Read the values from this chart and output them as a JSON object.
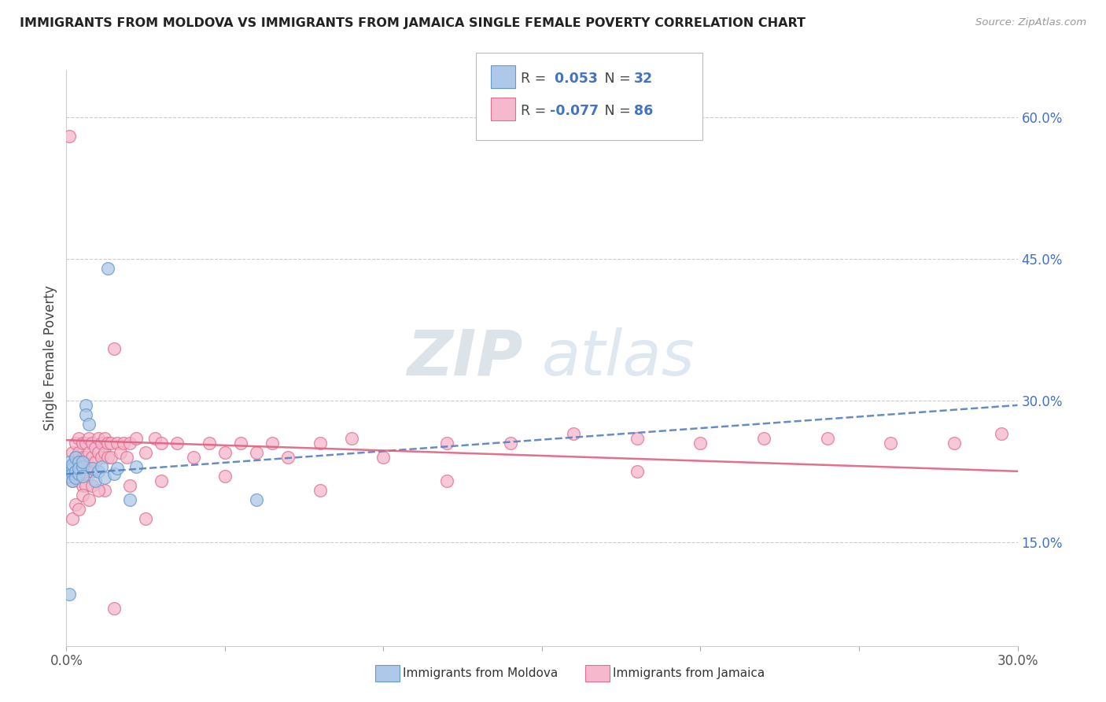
{
  "title": "IMMIGRANTS FROM MOLDOVA VS IMMIGRANTS FROM JAMAICA SINGLE FEMALE POVERTY CORRELATION CHART",
  "source": "Source: ZipAtlas.com",
  "ylabel": "Single Female Poverty",
  "xlim": [
    0.0,
    0.3
  ],
  "ylim": [
    0.04,
    0.65
  ],
  "xticks": [
    0.0,
    0.05,
    0.1,
    0.15,
    0.2,
    0.25,
    0.3
  ],
  "xticklabels": [
    "0.0%",
    "",
    "",
    "",
    "",
    "",
    "30.0%"
  ],
  "yticks_right": [
    0.15,
    0.3,
    0.45,
    0.6
  ],
  "ytick_labels_right": [
    "15.0%",
    "30.0%",
    "45.0%",
    "60.0%"
  ],
  "moldova_color": "#adc8e8",
  "moldova_edge": "#6699cc",
  "jamaica_color": "#f5b8cc",
  "jamaica_edge": "#e07090",
  "moldova_R": 0.053,
  "moldova_N": 32,
  "jamaica_R": -0.077,
  "jamaica_N": 86,
  "watermark": "ZIPatlas",
  "moldova_scatter_x": [
    0.001,
    0.001,
    0.001,
    0.001,
    0.002,
    0.002,
    0.002,
    0.002,
    0.003,
    0.003,
    0.003,
    0.004,
    0.004,
    0.004,
    0.005,
    0.005,
    0.005,
    0.006,
    0.006,
    0.007,
    0.008,
    0.009,
    0.01,
    0.011,
    0.012,
    0.013,
    0.015,
    0.016,
    0.02,
    0.022,
    0.06,
    0.001
  ],
  "moldova_scatter_y": [
    0.225,
    0.23,
    0.235,
    0.22,
    0.228,
    0.222,
    0.232,
    0.215,
    0.24,
    0.225,
    0.218,
    0.235,
    0.222,
    0.228,
    0.23,
    0.235,
    0.22,
    0.295,
    0.285,
    0.275,
    0.228,
    0.215,
    0.225,
    0.23,
    0.218,
    0.44,
    0.222,
    0.228,
    0.195,
    0.23,
    0.195,
    0.095
  ],
  "jamaica_scatter_x": [
    0.001,
    0.001,
    0.002,
    0.002,
    0.002,
    0.003,
    0.003,
    0.003,
    0.003,
    0.004,
    0.004,
    0.004,
    0.004,
    0.005,
    0.005,
    0.005,
    0.005,
    0.006,
    0.006,
    0.006,
    0.006,
    0.007,
    0.007,
    0.007,
    0.008,
    0.008,
    0.008,
    0.009,
    0.009,
    0.01,
    0.01,
    0.011,
    0.011,
    0.012,
    0.012,
    0.013,
    0.013,
    0.014,
    0.014,
    0.015,
    0.016,
    0.017,
    0.018,
    0.019,
    0.02,
    0.022,
    0.025,
    0.028,
    0.03,
    0.035,
    0.04,
    0.045,
    0.05,
    0.055,
    0.06,
    0.065,
    0.07,
    0.08,
    0.09,
    0.1,
    0.12,
    0.14,
    0.16,
    0.18,
    0.2,
    0.22,
    0.24,
    0.26,
    0.28,
    0.295,
    0.003,
    0.005,
    0.008,
    0.012,
    0.02,
    0.03,
    0.05,
    0.08,
    0.12,
    0.18,
    0.002,
    0.004,
    0.007,
    0.01,
    0.015,
    0.025
  ],
  "jamaica_scatter_y": [
    0.23,
    0.58,
    0.245,
    0.225,
    0.215,
    0.255,
    0.24,
    0.22,
    0.23,
    0.26,
    0.245,
    0.23,
    0.215,
    0.255,
    0.24,
    0.225,
    0.21,
    0.255,
    0.24,
    0.225,
    0.21,
    0.26,
    0.245,
    0.23,
    0.255,
    0.24,
    0.225,
    0.25,
    0.235,
    0.26,
    0.245,
    0.255,
    0.24,
    0.26,
    0.245,
    0.255,
    0.24,
    0.255,
    0.24,
    0.355,
    0.255,
    0.245,
    0.255,
    0.24,
    0.255,
    0.26,
    0.245,
    0.26,
    0.255,
    0.255,
    0.24,
    0.255,
    0.245,
    0.255,
    0.245,
    0.255,
    0.24,
    0.255,
    0.26,
    0.24,
    0.255,
    0.255,
    0.265,
    0.26,
    0.255,
    0.26,
    0.26,
    0.255,
    0.255,
    0.265,
    0.19,
    0.2,
    0.21,
    0.205,
    0.21,
    0.215,
    0.22,
    0.205,
    0.215,
    0.225,
    0.175,
    0.185,
    0.195,
    0.205,
    0.08,
    0.175
  ]
}
